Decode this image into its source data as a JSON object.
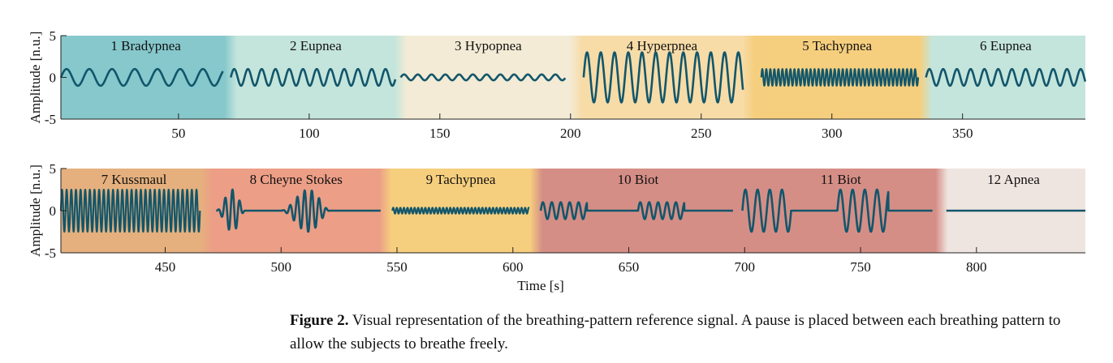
{
  "colors": {
    "signal": "#12566b",
    "axis": "#222222",
    "region_bradypnea": "#86c8cc",
    "region_eupnea": "#c4e5dc",
    "region_hypopnea": "#f3ebd5",
    "region_hyperpnea": "#f7dca8",
    "region_tachypnea": "#f6cf7e",
    "region_kussmaul": "#e5b07e",
    "region_cheyne": "#ec9e86",
    "region_biot": "#d58e86",
    "region_apnea": "#efe5e0"
  },
  "chart_data": [
    {
      "type": "line",
      "title": "",
      "xlabel": "",
      "ylabel": "Amplitude [n.u.]",
      "xlim": [
        5,
        397
      ],
      "ylim": [
        -5,
        5
      ],
      "xticks": [
        50,
        100,
        150,
        200,
        250,
        300,
        350
      ],
      "yticks": [
        -5,
        0,
        5
      ],
      "regions": [
        {
          "label": "1 Bradypnea",
          "x0": 5,
          "x1": 70,
          "color_key": "region_bradypnea",
          "pattern": "sine",
          "sig_start": 5,
          "sig_end": 67,
          "amp": 1.0,
          "freq": 0.115
        },
        {
          "label": "2 Eupnea",
          "x0": 70,
          "x1": 135,
          "color_key": "region_eupnea",
          "pattern": "sine",
          "sig_start": 70,
          "sig_end": 133,
          "amp": 1.0,
          "freq": 0.19
        },
        {
          "label": "3 Hypopnea",
          "x0": 135,
          "x1": 202,
          "color_key": "region_hypopnea",
          "pattern": "sine",
          "sig_start": 135,
          "sig_end": 198,
          "amp": 0.35,
          "freq": 0.19
        },
        {
          "label": "4 Hyperpnea",
          "x0": 202,
          "x1": 268,
          "color_key": "region_hyperpnea",
          "pattern": "sine",
          "sig_start": 205,
          "sig_end": 266,
          "amp": 3.0,
          "freq": 0.19
        },
        {
          "label": "5 Tachypnea",
          "x0": 268,
          "x1": 336,
          "color_key": "region_tachypnea",
          "pattern": "sine",
          "sig_start": 273,
          "sig_end": 333,
          "amp": 1.0,
          "freq": 0.65
        },
        {
          "label": "6 Eupnea",
          "x0": 336,
          "x1": 397,
          "color_key": "region_eupnea",
          "pattern": "sine",
          "sig_start": 336,
          "sig_end": 397,
          "amp": 1.0,
          "freq": 0.19
        }
      ]
    },
    {
      "type": "line",
      "title": "",
      "xlabel": "Time [s]",
      "ylabel": "Amplitude [n.u.]",
      "xlim": [
        405,
        847
      ],
      "ylim": [
        -5,
        5
      ],
      "xticks": [
        450,
        500,
        550,
        600,
        650,
        700,
        750,
        800
      ],
      "yticks": [
        -5,
        0,
        5
      ],
      "regions": [
        {
          "label": "7 Kussmaul",
          "x0": 405,
          "x1": 468,
          "color_key": "region_kussmaul",
          "pattern": "sine",
          "sig_start": 405,
          "sig_end": 465,
          "amp": 2.5,
          "freq": 0.5
        },
        {
          "label": "8 Cheyne Stokes",
          "x0": 468,
          "x1": 545,
          "color_key": "region_cheyne",
          "pattern": "cheyne",
          "sig_start": 472,
          "sig_end": 543,
          "bursts": [
            [
              472,
              485
            ],
            [
              500,
              522
            ]
          ],
          "amp": 3.7,
          "freq": 0.32
        },
        {
          "label": "9 Tachypnea",
          "x0": 545,
          "x1": 610,
          "color_key": "region_tachypnea",
          "pattern": "sine",
          "sig_start": 548,
          "sig_end": 607,
          "amp": 0.35,
          "freq": 0.65
        },
        {
          "label": "10 Biot",
          "x0": 610,
          "x1": 698,
          "color_key": "region_biot",
          "pattern": "biot",
          "sig_start": 612,
          "sig_end": 695,
          "bursts": [
            [
              612,
              632
            ],
            [
              654,
              674
            ]
          ],
          "amp": 1.0,
          "freq": 0.26
        },
        {
          "label": "11 Biot",
          "x0": 698,
          "x1": 785,
          "color_key": "region_biot",
          "pattern": "biot",
          "sig_start": 699,
          "sig_end": 781,
          "bursts": [
            [
              699,
              720
            ],
            [
              740,
              762
            ]
          ],
          "amp": 2.5,
          "freq": 0.19
        },
        {
          "label": "12 Apnea",
          "x0": 785,
          "x1": 847,
          "color_key": "region_apnea",
          "pattern": "flat",
          "sig_start": 787,
          "sig_end": 847,
          "amp": 0,
          "freq": 0
        }
      ]
    }
  ],
  "caption": {
    "label": "Figure 2.",
    "text": " Visual representation of the breathing-pattern reference signal. A pause is placed between each breathing pattern to allow the subjects to breathe freely."
  }
}
